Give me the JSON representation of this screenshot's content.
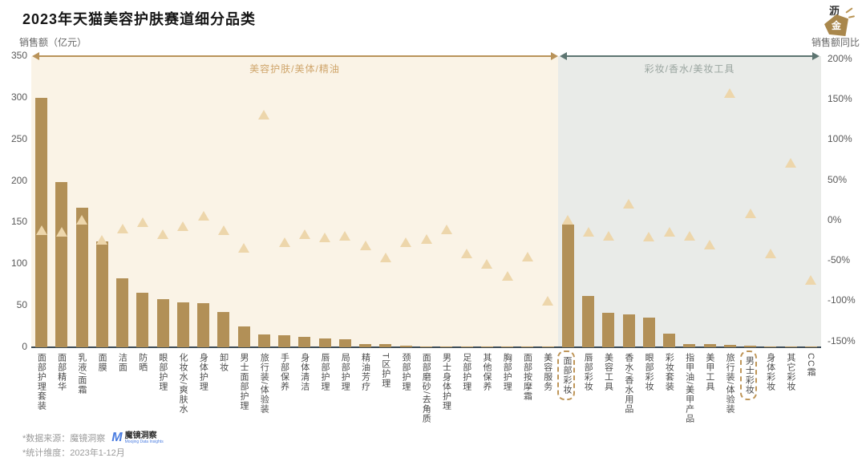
{
  "title": "2023年天猫美容护肤赛道细分品类",
  "brand_logo": {
    "char_top": "沥",
    "char_bottom": "金"
  },
  "footer": {
    "line1": "*数据来源：魔镜洞察",
    "line2": "*统计维度：2023年1-12月",
    "logo_mark": "M",
    "logo_text": "魔镜洞察",
    "logo_tagline": "Moojing Data Insights"
  },
  "colors": {
    "bar": "#b29057",
    "triangle_marker": "#edd6ab",
    "skincare_region_bg": "#faf3e6",
    "makeup_region_bg": "#e9ebe8",
    "skincare_accent": "#b9935a",
    "makeup_accent": "#5d7571",
    "baseline": "#3c4b57",
    "highlight_box": "#bf9659",
    "footer_logo_blue": "#4a7ce0"
  },
  "chart_data": {
    "type": "bar",
    "subtype": "bar-with-scatter-triangles-dual-axis",
    "title": "2023年天猫美容护肤赛道细分品类",
    "left_axis": {
      "label": "销售额（亿元）",
      "range": [
        0,
        350
      ],
      "ticks": [
        350,
        300,
        250,
        200,
        150,
        100,
        50,
        0
      ]
    },
    "right_axis": {
      "label": "销售额同比",
      "range_pct": [
        -150,
        200
      ],
      "ticks": [
        "200%",
        "150%",
        "100%",
        "50%",
        "0%",
        "-50%",
        "-100%",
        "-150%"
      ]
    },
    "regions": [
      {
        "label": "美容护肤/美体/精油",
        "category_span": [
          0,
          25
        ]
      },
      {
        "label": "彩妆/香水/美妆工具",
        "category_span": [
          26,
          38
        ]
      }
    ],
    "highlighted_categories": [
      "面部彩妆",
      "男士彩妆"
    ],
    "categories": [
      "面部护理套装",
      "面部精华",
      "乳液/面霜",
      "面膜",
      "洁面",
      "防晒",
      "眼部护理",
      "化妆水/爽肤水",
      "身体护理",
      "卸妆",
      "男士面部护理",
      "旅行装/体验装",
      "手部保养",
      "身体清洁",
      "唇部护理",
      "局部护理",
      "精油芳疗",
      "T区护理",
      "颈部护理",
      "面部磨砂/去角质",
      "男士身体护理",
      "足部护理",
      "其他保养",
      "胸部护理",
      "面部按摩霜",
      "美容服务",
      "面部彩妆",
      "唇部彩妆",
      "美容工具",
      "香水/香水用品",
      "眼部彩妆",
      "彩妆套装",
      "指甲油/美甲产品",
      "美甲工具",
      "旅行装/体验装",
      "男士彩妆",
      "身体彩妆",
      "其它彩妆",
      "CC霜"
    ],
    "series": [
      {
        "name": "销售额（亿元）",
        "type": "bar",
        "yaxis": "left",
        "values": [
          300,
          199,
          168,
          127,
          83,
          66,
          58,
          54,
          53,
          42,
          25,
          15,
          14,
          13,
          11,
          10,
          4,
          4,
          1.6,
          1.2,
          1,
          0.8,
          0.8,
          0.6,
          0.6,
          0.5,
          148,
          62,
          41,
          40,
          36,
          16,
          4,
          3.5,
          2.5,
          1.5,
          1,
          1,
          0.5
        ]
      },
      {
        "name": "销售额同比",
        "type": "scatter",
        "marker": "triangle-up",
        "yaxis": "right",
        "unit": "%",
        "values": [
          -13,
          -15,
          0,
          -25,
          -11,
          -3,
          -18,
          -8,
          5,
          -13,
          -35,
          130,
          -28,
          -18,
          -22,
          -20,
          -32,
          -47,
          -28,
          -24,
          -12,
          -42,
          -55,
          -70,
          -46,
          -100,
          0,
          -15,
          -20,
          20,
          -21,
          -15,
          -20,
          -31,
          157,
          8,
          -42,
          71,
          -75
        ]
      }
    ]
  }
}
